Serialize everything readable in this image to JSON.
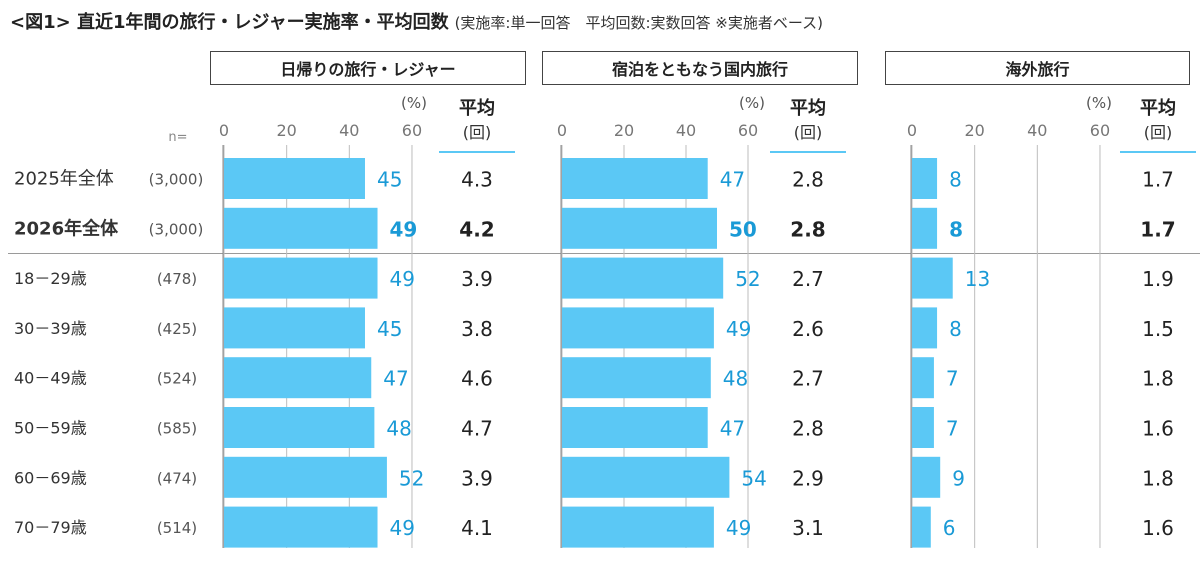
{
  "title": "<図1> 直近1年間の旅行・レジャー実施率・平均回数",
  "title_note": "(実施率:単一回答　平均回数:実数回答 ※実施者ベース)",
  "n_label": "n=",
  "unit_label": "(%)",
  "avg_label": "平均",
  "avg_unit": "(回)",
  "colors": {
    "bar": "#5bc8f5",
    "value_text": "#1a9ad6",
    "avg_underline": "#5bc8f5"
  },
  "chart_data": {
    "type": "bar",
    "orientation": "horizontal",
    "categories": [
      "2025年全体",
      "2026年全体",
      "18－29歳",
      "30－39歳",
      "40－49歳",
      "50－59歳",
      "60－69歳",
      "70－79歳"
    ],
    "n_values": [
      "(3,000)",
      "(3,000)",
      "(478)",
      "(425)",
      "(524)",
      "(585)",
      "(474)",
      "(514)"
    ],
    "bold_rows": [
      1
    ],
    "xlim": [
      0,
      60
    ],
    "xticks": [
      "0",
      "20",
      "40",
      "60"
    ],
    "grid": true,
    "panels": [
      {
        "name": "日帰りの旅行・レジャー",
        "values": [
          45,
          49,
          49,
          45,
          47,
          48,
          52,
          49
        ],
        "avg": [
          "4.3",
          "4.2",
          "3.9",
          "3.8",
          "4.6",
          "4.7",
          "3.9",
          "4.1"
        ]
      },
      {
        "name": "宿泊をともなう国内旅行",
        "values": [
          47,
          50,
          52,
          49,
          48,
          47,
          54,
          49
        ],
        "avg": [
          "2.8",
          "2.8",
          "2.7",
          "2.6",
          "2.7",
          "2.8",
          "2.9",
          "3.1"
        ]
      },
      {
        "name": "海外旅行",
        "values": [
          8,
          8,
          13,
          8,
          7,
          7,
          9,
          6
        ],
        "avg": [
          "1.7",
          "1.7",
          "1.9",
          "1.5",
          "1.8",
          "1.6",
          "1.8",
          "1.6"
        ]
      }
    ]
  }
}
